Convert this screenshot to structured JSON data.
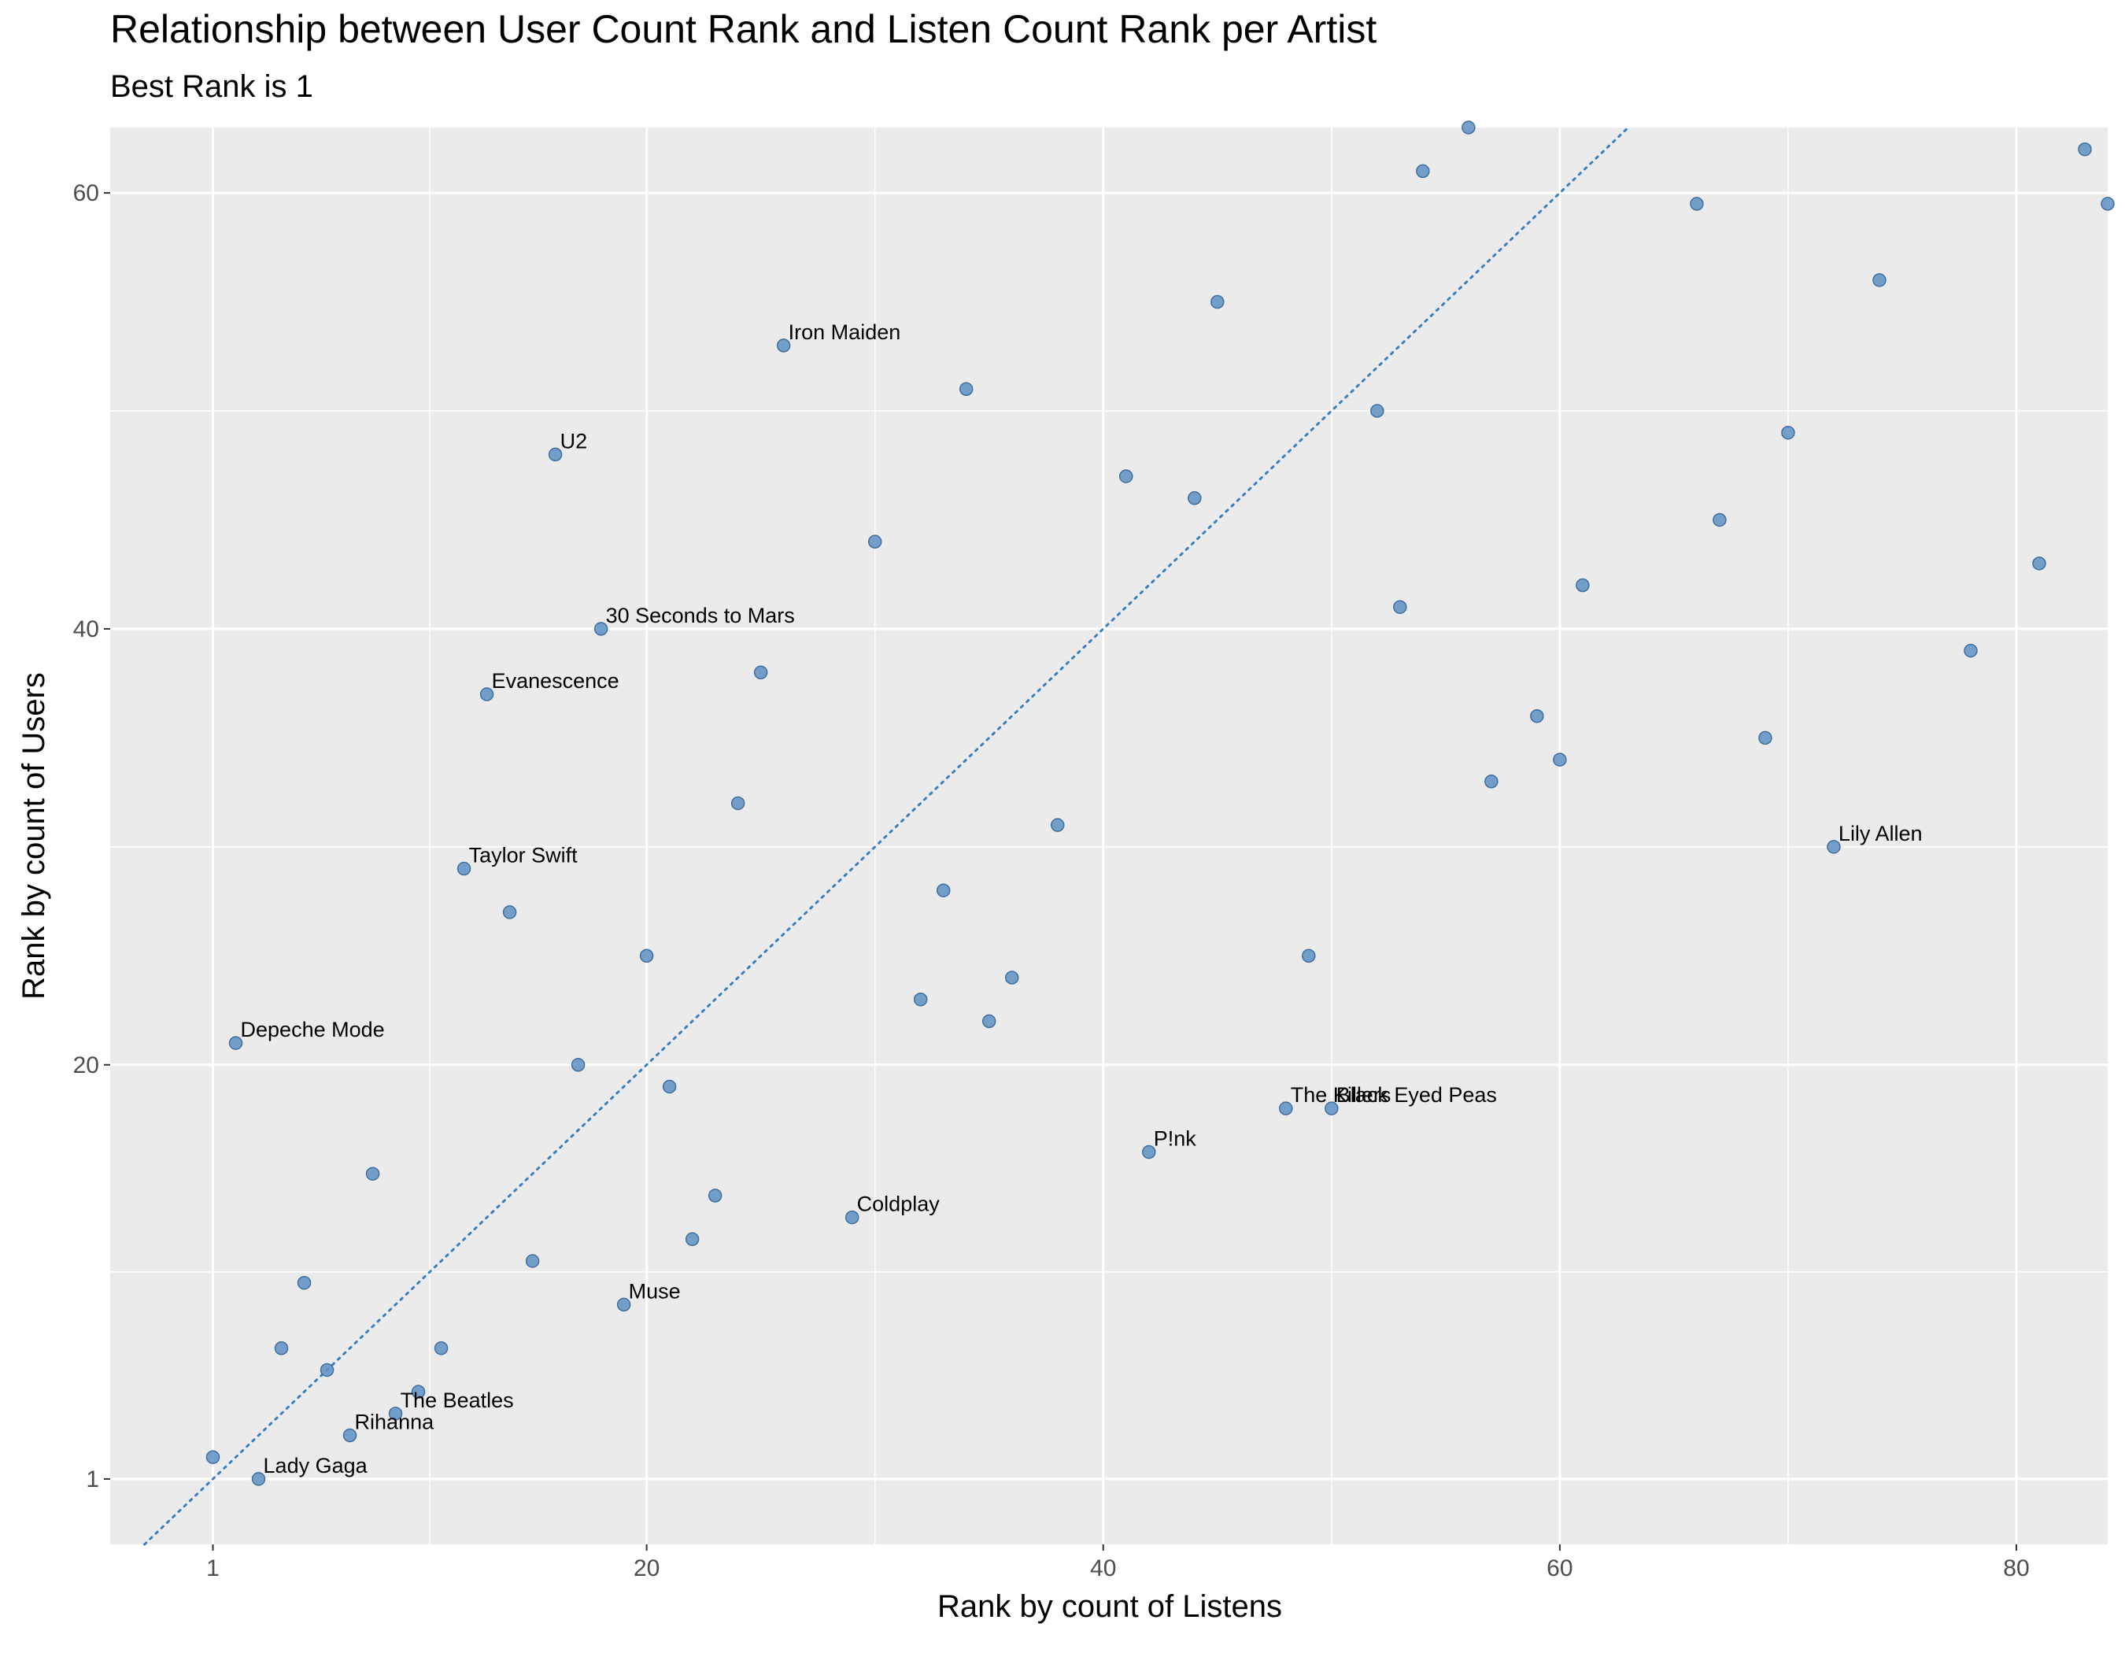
{
  "chart_data": {
    "type": "scatter",
    "title": "Relationship between User Count Rank and Listen Count Rank per Artist",
    "subtitle": "Best Rank is 1",
    "xlabel": "Rank by count of Listens",
    "ylabel": "Rank by count of Users",
    "xlim": [
      -3.5,
      84
    ],
    "ylim": [
      -2,
      63
    ],
    "x_ticks": [
      1,
      20,
      40,
      60,
      80
    ],
    "y_ticks": [
      1,
      20,
      40,
      60
    ],
    "grid": true,
    "reference_line": {
      "type": "y=x",
      "style": "dotted",
      "color": "#3a7fc0"
    },
    "point_color": "#5f90c4",
    "points": [
      {
        "x": 1,
        "y": 2,
        "label": ""
      },
      {
        "x": 3,
        "y": 1,
        "label": "Lady Gaga"
      },
      {
        "x": 2,
        "y": 21,
        "label": "Depeche Mode"
      },
      {
        "x": 4,
        "y": 7,
        "label": ""
      },
      {
        "x": 5,
        "y": 10,
        "label": ""
      },
      {
        "x": 6,
        "y": 6,
        "label": ""
      },
      {
        "x": 7,
        "y": 3,
        "label": "Rihanna"
      },
      {
        "x": 8,
        "y": 15,
        "label": ""
      },
      {
        "x": 9,
        "y": 4,
        "label": "The Beatles"
      },
      {
        "x": 10,
        "y": 5,
        "label": ""
      },
      {
        "x": 11,
        "y": 7,
        "label": ""
      },
      {
        "x": 12,
        "y": 29,
        "label": "Taylor Swift"
      },
      {
        "x": 13,
        "y": 37,
        "label": "Evanescence"
      },
      {
        "x": 14,
        "y": 27,
        "label": ""
      },
      {
        "x": 15,
        "y": 11,
        "label": ""
      },
      {
        "x": 16,
        "y": 48,
        "label": "U2"
      },
      {
        "x": 17,
        "y": 20,
        "label": ""
      },
      {
        "x": 18,
        "y": 40,
        "label": "30 Seconds to Mars"
      },
      {
        "x": 19,
        "y": 9,
        "label": "Muse"
      },
      {
        "x": 20,
        "y": 25,
        "label": ""
      },
      {
        "x": 21,
        "y": 19,
        "label": ""
      },
      {
        "x": 22,
        "y": 12,
        "label": ""
      },
      {
        "x": 23,
        "y": 14,
        "label": ""
      },
      {
        "x": 24,
        "y": 32,
        "label": ""
      },
      {
        "x": 25,
        "y": 38,
        "label": ""
      },
      {
        "x": 26,
        "y": 53,
        "label": "Iron Maiden"
      },
      {
        "x": 29,
        "y": 13,
        "label": "Coldplay"
      },
      {
        "x": 30,
        "y": 44,
        "label": ""
      },
      {
        "x": 32,
        "y": 23,
        "label": ""
      },
      {
        "x": 33,
        "y": 28,
        "label": ""
      },
      {
        "x": 34,
        "y": 51,
        "label": ""
      },
      {
        "x": 35,
        "y": 22,
        "label": ""
      },
      {
        "x": 36,
        "y": 24,
        "label": ""
      },
      {
        "x": 38,
        "y": 31,
        "label": ""
      },
      {
        "x": 41,
        "y": 47,
        "label": ""
      },
      {
        "x": 42,
        "y": 16,
        "label": "P!nk"
      },
      {
        "x": 44,
        "y": 46,
        "label": ""
      },
      {
        "x": 45,
        "y": 55,
        "label": ""
      },
      {
        "x": 48,
        "y": 18,
        "label": "The Killers"
      },
      {
        "x": 49,
        "y": 25,
        "label": ""
      },
      {
        "x": 50,
        "y": 18,
        "label": "Black Eyed Peas"
      },
      {
        "x": 52,
        "y": 50,
        "label": ""
      },
      {
        "x": 53,
        "y": 41,
        "label": ""
      },
      {
        "x": 54,
        "y": 61,
        "label": ""
      },
      {
        "x": 56,
        "y": 63,
        "label": ""
      },
      {
        "x": 57,
        "y": 33,
        "label": ""
      },
      {
        "x": 59,
        "y": 36,
        "label": ""
      },
      {
        "x": 60,
        "y": 34,
        "label": ""
      },
      {
        "x": 61,
        "y": 42,
        "label": ""
      },
      {
        "x": 66,
        "y": 59.5,
        "label": ""
      },
      {
        "x": 67,
        "y": 45,
        "label": ""
      },
      {
        "x": 69,
        "y": 35,
        "label": ""
      },
      {
        "x": 70,
        "y": 49,
        "label": ""
      },
      {
        "x": 72,
        "y": 30,
        "label": "Lily Allen"
      },
      {
        "x": 74,
        "y": 56,
        "label": ""
      },
      {
        "x": 78,
        "y": 39,
        "label": ""
      },
      {
        "x": 81,
        "y": 43,
        "label": ""
      },
      {
        "x": 83,
        "y": 62,
        "label": ""
      },
      {
        "x": 84,
        "y": 59.5,
        "label": ""
      }
    ]
  }
}
